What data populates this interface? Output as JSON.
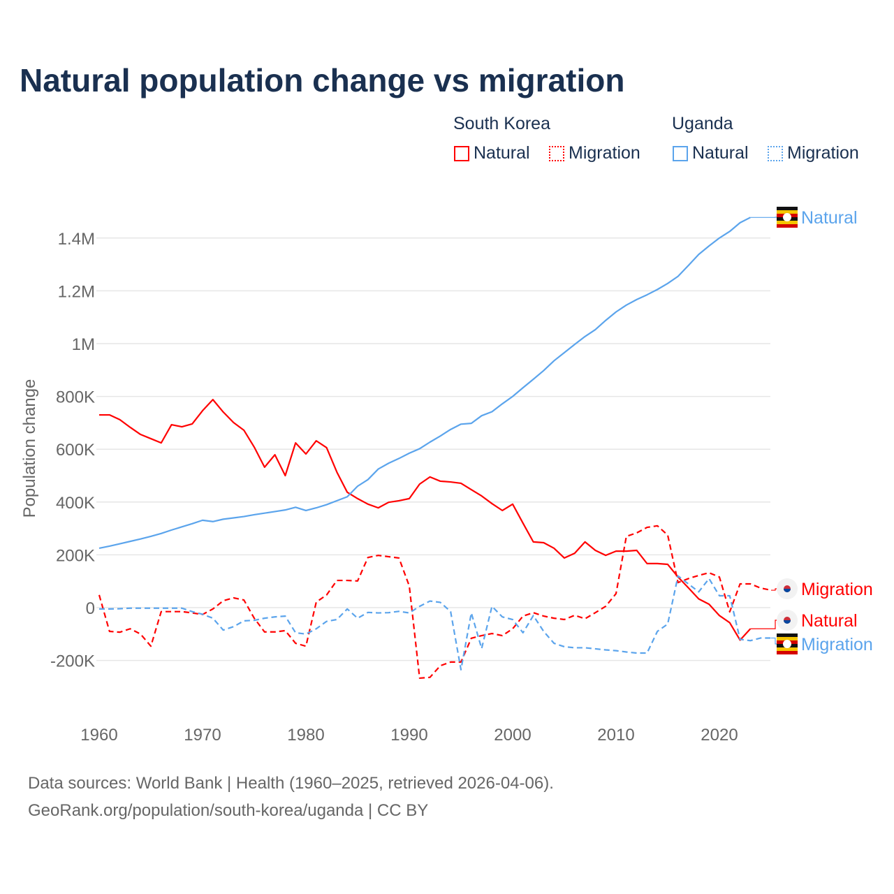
{
  "chart_data": {
    "type": "line",
    "title": "Natural population change vs migration",
    "ylabel": "Population change",
    "xlabel": "",
    "xlim": [
      1960,
      2025
    ],
    "ylim": [
      -300000,
      1500000
    ],
    "x_ticks": [
      1960,
      1970,
      1980,
      1990,
      2000,
      2010,
      2020
    ],
    "x_tick_labels": [
      "1960",
      "1970",
      "1980",
      "1990",
      "2000",
      "2010",
      "2020"
    ],
    "y_ticks": [
      -200000,
      0,
      200000,
      400000,
      600000,
      800000,
      1000000,
      1200000,
      1400000
    ],
    "y_tick_labels": [
      "-200K",
      "0",
      "200K",
      "400K",
      "600K",
      "800K",
      "1M",
      "1.2M",
      "1.4M"
    ],
    "grid": true,
    "legend": {
      "placement": "top-right",
      "groups": [
        {
          "name": "South Korea",
          "items": [
            "Natural",
            "Migration"
          ]
        },
        {
          "name": "Uganda",
          "items": [
            "Natural",
            "Migration"
          ]
        }
      ]
    },
    "series": [
      {
        "name": "South Korea Natural",
        "country": "South Korea",
        "kind": "Natural",
        "color": "#ff0000",
        "dash": false,
        "end_label": "Natural",
        "start": 1960,
        "values": [
          730,
          730,
          712,
          683,
          656,
          640,
          624,
          693,
          685,
          696,
          746,
          788,
          741,
          701,
          672,
          608,
          532,
          579,
          500,
          624,
          582,
          632,
          606,
          513,
          437,
          413,
          392,
          378,
          399,
          405,
          413,
          468,
          495,
          479,
          476,
          471,
          447,
          423,
          394,
          368,
          392,
          320,
          249,
          246,
          225,
          188,
          206,
          249,
          217,
          198,
          214,
          214,
          217,
          167,
          167,
          164,
          116,
          75,
          33,
          13,
          -30,
          -57,
          -123,
          -80
        ]
      },
      {
        "name": "South Korea Migration",
        "country": "South Korea",
        "kind": "Migration",
        "color": "#ff0000",
        "dash": true,
        "end_label": "Migration",
        "start": 1960,
        "values": [
          48,
          -90,
          -93,
          -80,
          -100,
          -146,
          -15,
          -15,
          -15,
          -20,
          -26,
          -5,
          26,
          37,
          29,
          -40,
          -92,
          -92,
          -87,
          -135,
          -146,
          21,
          48,
          103,
          103,
          101,
          190,
          198,
          193,
          188,
          82,
          -267,
          -264,
          -220,
          -206,
          -206,
          -116,
          -106,
          -98,
          -106,
          -80,
          -32,
          -19,
          -32,
          -40,
          -45,
          -29,
          -42,
          -19,
          5,
          53,
          270,
          283,
          304,
          310,
          275,
          95,
          110,
          122,
          132,
          116,
          -16,
          90,
          90,
          74,
          66
        ]
      },
      {
        "name": "Uganda Natural",
        "country": "Uganda",
        "kind": "Natural",
        "color": "#5ba4ec",
        "dash": false,
        "end_label": "Natural",
        "start": 1960,
        "values": [
          225,
          233,
          242,
          251,
          260,
          270,
          281,
          294,
          306,
          318,
          331,
          326,
          335,
          340,
          345,
          352,
          358,
          364,
          370,
          380,
          368,
          378,
          390,
          405,
          420,
          460,
          485,
          525,
          547,
          565,
          585,
          602,
          627,
          650,
          675,
          695,
          698,
          727,
          742,
          772,
          800,
          833,
          865,
          898,
          935,
          966,
          997,
          1027,
          1053,
          1088,
          1120,
          1146,
          1167,
          1185,
          1205,
          1228,
          1255,
          1296,
          1338,
          1370,
          1400,
          1425,
          1458,
          1478
        ]
      },
      {
        "name": "Uganda Migration",
        "country": "Uganda",
        "kind": "Migration",
        "color": "#5ba4ec",
        "dash": true,
        "end_label": "Migration",
        "start": 1960,
        "values": [
          -5,
          -5,
          -4,
          -2,
          -2,
          -2,
          -2,
          -2,
          -2,
          -15,
          -25,
          -40,
          -85,
          -72,
          -50,
          -48,
          -40,
          -35,
          -32,
          -95,
          -100,
          -80,
          -52,
          -45,
          -5,
          -40,
          -18,
          -20,
          -19,
          -14,
          -20,
          5,
          25,
          20,
          -15,
          -235,
          -20,
          -155,
          5,
          -35,
          -45,
          -95,
          -30,
          -90,
          -135,
          -148,
          -152,
          -152,
          -156,
          -160,
          -163,
          -168,
          -172,
          -172,
          -90,
          -62,
          120,
          90,
          60,
          110,
          45,
          45,
          -120,
          -125,
          -115,
          -115
        ]
      }
    ],
    "value_unit": "thousands"
  },
  "legend": {
    "sk": "South Korea",
    "ug": "Uganda",
    "natural": "Natural",
    "migration": "Migration"
  },
  "sources": {
    "line1": "Data sources: World Bank | Health (1960–2025, retrieved 2026-04-06).",
    "line2": "GeoRank.org/population/south-korea/uganda | CC BY"
  }
}
